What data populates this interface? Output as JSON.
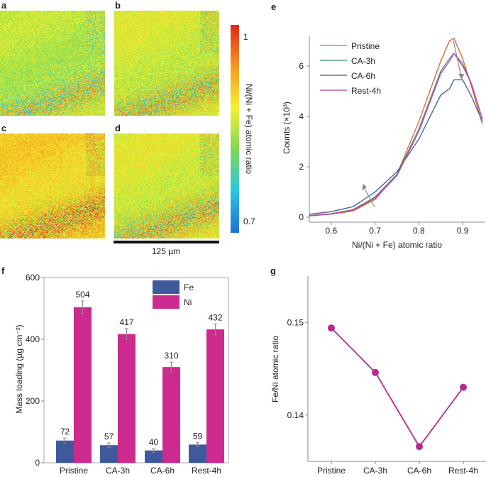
{
  "panel_labels": {
    "a": "a",
    "b": "b",
    "c": "c",
    "d": "d",
    "e": "e",
    "f": "f",
    "g": "g"
  },
  "maps": {
    "colorbar": {
      "title": "Ni/(Ni + Fe) atomic ratio",
      "max_label": "1",
      "min_label": "0.7",
      "range": [
        0.7,
        1.0
      ],
      "colors": [
        "#1f6fd8",
        "#27c7e0",
        "#7ed957",
        "#f2f230",
        "#f59a1e",
        "#e3261c"
      ]
    },
    "scale_bar": "125 µm",
    "mean_ratio": {
      "a": 0.85,
      "b": 0.865,
      "c": 0.9,
      "d": 0.87
    }
  },
  "chart_data": [
    {
      "panel": "e",
      "type": "line",
      "xlabel": "Ni/(Ni + Fe) atomic ratio",
      "ylabel": "Counts (×10³)",
      "xlim": [
        0.55,
        0.95
      ],
      "ylim": [
        -0.2,
        7.2
      ],
      "xticks": [
        "0.6",
        "0.7",
        "0.8",
        "0.9"
      ],
      "yticks": [
        "0",
        "2",
        "4",
        "6"
      ],
      "legend_placement": "top-left",
      "x": [
        0.55,
        0.6,
        0.65,
        0.7,
        0.75,
        0.8,
        0.85,
        0.87,
        0.88,
        0.9,
        0.92,
        0.945
      ],
      "series": [
        {
          "name": "Pristine",
          "color": "#e0622a",
          "values": [
            0.05,
            0.12,
            0.25,
            0.7,
            1.7,
            3.8,
            6.2,
            7.0,
            7.1,
            6.3,
            5.2,
            3.7
          ]
        },
        {
          "name": "CA-3h",
          "color": "#3f8f70",
          "values": [
            0.07,
            0.14,
            0.3,
            0.8,
            1.7,
            3.5,
            5.8,
            6.3,
            6.5,
            6.1,
            5.3,
            3.9
          ]
        },
        {
          "name": "CA-6h",
          "color": "#3f5a9a",
          "values": [
            0.12,
            0.22,
            0.42,
            1.0,
            1.8,
            3.1,
            4.85,
            5.1,
            5.45,
            5.45,
            4.8,
            3.8
          ]
        },
        {
          "name": "Rest-4h",
          "color": "#c23fa8",
          "values": [
            0.06,
            0.13,
            0.28,
            0.75,
            1.65,
            3.4,
            5.7,
            6.2,
            6.5,
            6.0,
            5.3,
            3.9
          ]
        }
      ]
    },
    {
      "panel": "f",
      "type": "bar",
      "ylabel": "Mass loading (µg cm⁻²)",
      "ylim": [
        0,
        600
      ],
      "yticks": [
        "0",
        "200",
        "400",
        "600"
      ],
      "categories": [
        "Pristine",
        "CA-3h",
        "CA-6h",
        "Rest-4h"
      ],
      "legend_placement": "top-right",
      "series": [
        {
          "name": "Fe",
          "color": "#3f5a9c",
          "values": [
            72,
            57,
            40,
            59
          ],
          "labels": [
            "72",
            "57",
            "40",
            "59"
          ],
          "errors": [
            8,
            7,
            6,
            7
          ]
        },
        {
          "name": "Ni",
          "color": "#cc2a8e",
          "values": [
            504,
            417,
            310,
            432
          ],
          "labels": [
            "504",
            "417",
            "310",
            "432"
          ],
          "errors": [
            20,
            18,
            16,
            18
          ]
        }
      ]
    },
    {
      "panel": "g",
      "type": "line",
      "ylabel": "Fe/Ni atomic ratio",
      "ylim": [
        0.135,
        0.155
      ],
      "yticks": [
        "0.14",
        "0.15"
      ],
      "categories": [
        "Pristine",
        "CA-3h",
        "CA-6h",
        "Rest-4h"
      ],
      "color": "#b8288e",
      "values": [
        0.1494,
        0.1446,
        0.1366,
        0.143
      ]
    }
  ]
}
